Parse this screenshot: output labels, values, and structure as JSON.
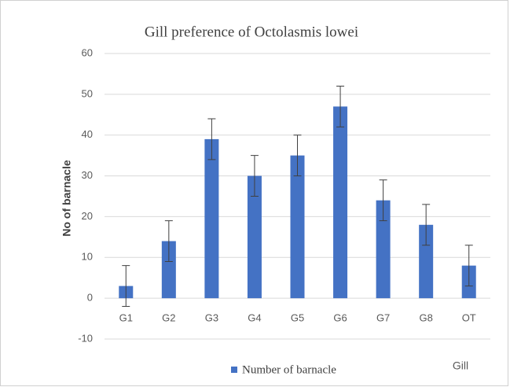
{
  "chart_data": {
    "type": "bar",
    "title": "Gill preference of Octolasmis lowei",
    "x_label": "Gill",
    "y_label": "No of barnacle",
    "categories": [
      "G1",
      "G2",
      "G3",
      "G4",
      "G5",
      "G6",
      "G7",
      "G8",
      "OT"
    ],
    "series": [
      {
        "name": "Number of barnacle",
        "color": "#4472c4",
        "values": [
          3,
          14,
          39,
          30,
          35,
          47,
          24,
          18,
          8
        ],
        "errors": [
          5,
          5,
          5,
          5,
          5,
          5,
          5,
          5,
          5
        ]
      }
    ],
    "ylim": [
      -10,
      60
    ],
    "yticks": [
      -10,
      0,
      10,
      20,
      30,
      40,
      50,
      60
    ],
    "grid": true,
    "legend": "bottom"
  }
}
